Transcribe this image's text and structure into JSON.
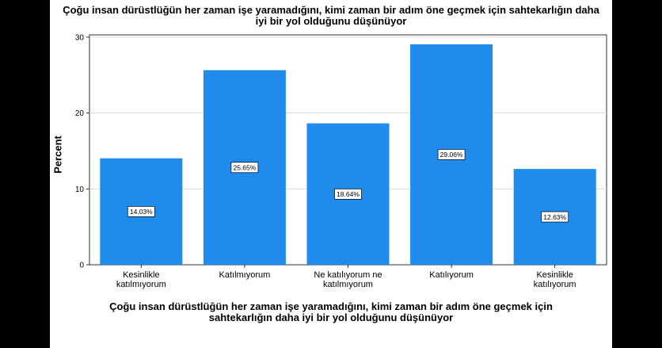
{
  "chart_data": {
    "type": "bar",
    "title_lines": [
      "Çoğu insan dürüstlüğün her zaman işe yaramadığını, kimi zaman bir adım öne geçmek için sahtekarlığın daha",
      "iyi bir yol olduğunu düşünüyor"
    ],
    "xlabel_lines": [
      "Çoğu insan dürüstlüğün her zaman işe yaramadığını, kimi zaman bir adım öne geçmek için",
      "sahtekarlığın daha iyi bir yol olduğunu düşünüyor"
    ],
    "ylabel": "Percent",
    "categories": [
      [
        "Kesinlikle",
        "katılmıyorum"
      ],
      [
        "Katılmıyorum"
      ],
      [
        "Ne katılıyorum ne",
        "katılmıyorum"
      ],
      [
        "Katılıyorum"
      ],
      [
        "Kesinlikle",
        "katılıyorum"
      ]
    ],
    "values": [
      14.03,
      25.65,
      18.64,
      29.06,
      12.63
    ],
    "data_labels": [
      "14.03%",
      "25.65%",
      "18.64%",
      "29.06%",
      "12.63%"
    ],
    "yticks": [
      0,
      10,
      20,
      30
    ],
    "ylim": [
      0,
      30.3
    ],
    "grid": true,
    "bar_color": "#1f8ceb"
  }
}
